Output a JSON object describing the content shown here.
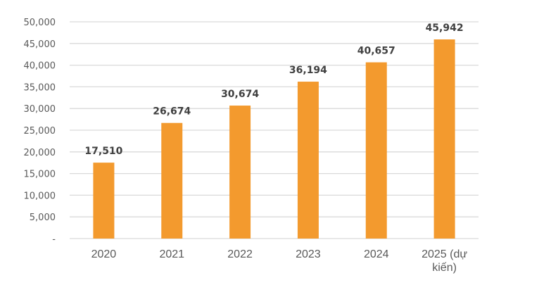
{
  "chart_data": {
    "type": "bar",
    "categories": [
      "2020",
      "2021",
      "2022",
      "2023",
      "2024",
      "2025 (dự kiến)"
    ],
    "category_lines": [
      [
        "2020"
      ],
      [
        "2021"
      ],
      [
        "2022"
      ],
      [
        "2023"
      ],
      [
        "2024"
      ],
      [
        "2025 (dự",
        "kiến)"
      ]
    ],
    "values": [
      17510,
      26674,
      30674,
      36194,
      40657,
      45942
    ],
    "data_labels": [
      "17,510",
      "26,674",
      "30,674",
      "36,194",
      "40,657",
      "45,942"
    ],
    "y_ticks": [
      0,
      5000,
      10000,
      15000,
      20000,
      25000,
      30000,
      35000,
      40000,
      45000,
      50000
    ],
    "y_tick_labels": [
      "-",
      "5,000",
      "10,000",
      "15,000",
      "20,000",
      "25,000",
      "30,000",
      "35,000",
      "40,000",
      "45,000",
      "50,000"
    ],
    "ylim": [
      0,
      50000
    ],
    "title": "",
    "xlabel": "",
    "ylabel": "",
    "grid": true,
    "legend": "none",
    "bar_color": "#F39A2E",
    "grid_color": "#D9D9D9"
  }
}
